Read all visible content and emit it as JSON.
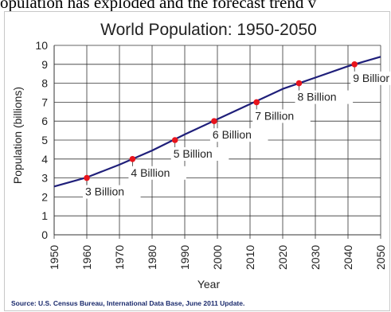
{
  "header_caption": "opulation has exploded and the forecast trend v",
  "source": "Source: U.S. Census Bureau, International Data Base, June 2011 Update.",
  "chart_data": {
    "type": "line",
    "title": "World Population: 1950-2050",
    "xlabel": "Year",
    "ylabel": "Population (billions)",
    "xlim": [
      1950,
      2050
    ],
    "ylim": [
      0,
      10
    ],
    "x_ticks": [
      "1950",
      "1960",
      "1970",
      "1980",
      "1990",
      "2000",
      "2010",
      "2020",
      "2030",
      "2040",
      "2050"
    ],
    "y_ticks": [
      "0",
      "1",
      "2",
      "3",
      "4",
      "5",
      "6",
      "7",
      "8",
      "9",
      "10"
    ],
    "grid": true,
    "series": [
      {
        "color": "#1f1f7a",
        "x": [
          1950,
          1960,
          1970,
          1980,
          1990,
          2000,
          2010,
          2020,
          2030,
          2040,
          2050
        ],
        "y": [
          2.55,
          3.03,
          3.7,
          4.45,
          5.3,
          6.1,
          6.9,
          7.7,
          8.3,
          8.9,
          9.4
        ]
      }
    ],
    "milestones": [
      {
        "x": 1960,
        "y": 3,
        "label": "3 Billion"
      },
      {
        "x": 1974,
        "y": 4,
        "label": "4 Billion"
      },
      {
        "x": 1987,
        "y": 5,
        "label": "5 Billion"
      },
      {
        "x": 1999,
        "y": 6,
        "label": "6 Billion"
      },
      {
        "x": 2012,
        "y": 7,
        "label": "7 Billion"
      },
      {
        "x": 2025,
        "y": 8,
        "label": "8 Billion"
      },
      {
        "x": 2042,
        "y": 9,
        "label": "9 Billior"
      }
    ],
    "milestone_color": "#e8141c"
  }
}
